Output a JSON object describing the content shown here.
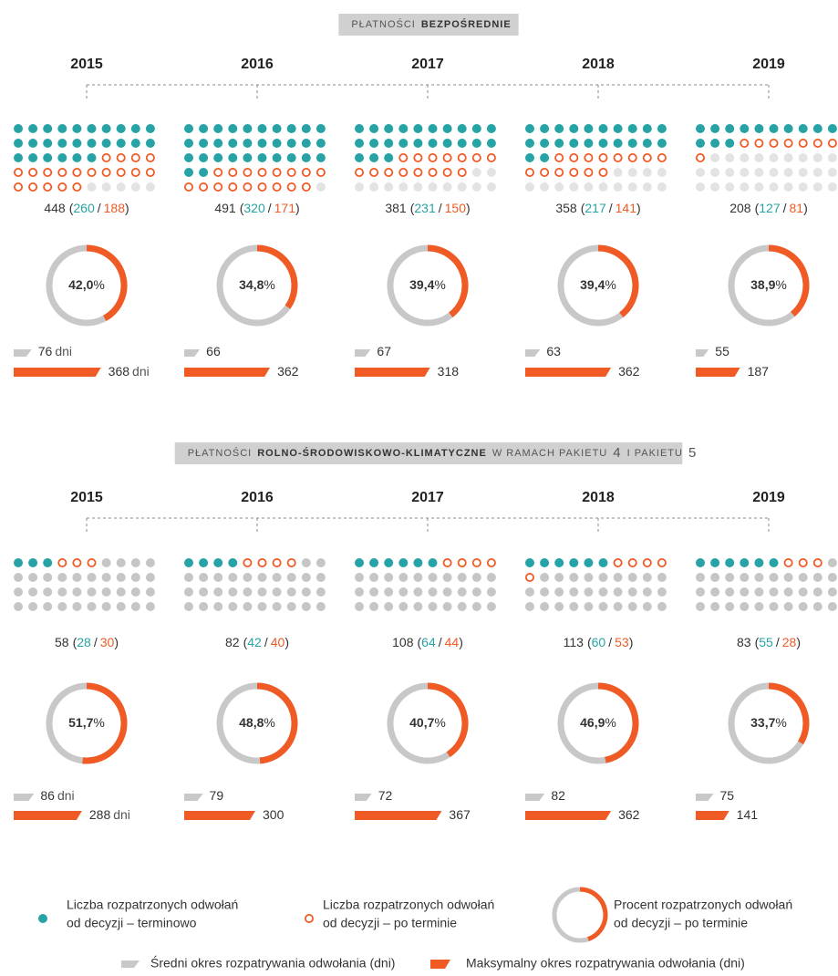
{
  "units": {
    "percent": "%",
    "days": "dni"
  },
  "punctuation": {
    "open": "(",
    "separator": "/",
    "close": ")"
  },
  "colors": {
    "on_time": "#27a3a5",
    "late": "#f05a24",
    "ring": "#c8c8c8",
    "avg_bar": "#c8c8c8",
    "max_bar": "#f05a24"
  },
  "sections": [
    {
      "title": [
        "PŁATNOŚCI",
        "BEZPOŚREDNIE"
      ],
      "empty_color": "#e3e3e3",
      "panels": [
        {
          "year": "2015",
          "total": 448,
          "on_time": 260,
          "late": 188,
          "percent": 42.0,
          "percent_label": "42,0",
          "avg_days": 76,
          "max_days": 368
        },
        {
          "year": "2016",
          "total": 491,
          "on_time": 320,
          "late": 171,
          "percent": 34.8,
          "percent_label": "34,8",
          "avg_days": 66,
          "max_days": 362
        },
        {
          "year": "2017",
          "total": 381,
          "on_time": 231,
          "late": 150,
          "percent": 39.4,
          "percent_label": "39,4",
          "avg_days": 67,
          "max_days": 318
        },
        {
          "year": "2018",
          "total": 358,
          "on_time": 217,
          "late": 141,
          "percent": 39.4,
          "percent_label": "39,4",
          "avg_days": 63,
          "max_days": 362
        },
        {
          "year": "2019",
          "total": 208,
          "on_time": 127,
          "late": 81,
          "percent": 38.9,
          "percent_label": "38,9",
          "avg_days": 55,
          "max_days": 187
        }
      ]
    },
    {
      "title": [
        "PŁATNOŚCI",
        "ROLNO-ŚRODOWISKOWO-KLIMATYCZNE",
        "W RAMACH PAKIETU",
        "4",
        "I PAKIETU",
        "5"
      ],
      "empty_color": "#c6c6c6",
      "panels": [
        {
          "year": "2015",
          "total": 58,
          "on_time": 28,
          "late": 30,
          "percent": 51.7,
          "percent_label": "51,7",
          "avg_days": 86,
          "max_days": 288
        },
        {
          "year": "2016",
          "total": 82,
          "on_time": 42,
          "late": 40,
          "percent": 48.8,
          "percent_label": "48,8",
          "avg_days": 79,
          "max_days": 300
        },
        {
          "year": "2017",
          "total": 108,
          "on_time": 64,
          "late": 44,
          "percent": 40.7,
          "percent_label": "40,7",
          "avg_days": 72,
          "max_days": 367
        },
        {
          "year": "2018",
          "total": 113,
          "on_time": 60,
          "late": 53,
          "percent": 46.9,
          "percent_label": "46,9",
          "avg_days": 82,
          "max_days": 362
        },
        {
          "year": "2019",
          "total": 83,
          "on_time": 55,
          "late": 28,
          "percent": 33.7,
          "percent_label": "33,7",
          "avg_days": 75,
          "max_days": 141
        }
      ]
    }
  ],
  "legend": {
    "items": [
      {
        "lines": [
          "Liczba rozpatrzonych odwołań",
          "od decyzji – terminowo"
        ]
      },
      {
        "lines": [
          "Liczba rozpatrzonych odwołań",
          "od decyzji – po terminie"
        ]
      },
      {
        "lines": [
          "Procent rozpatrzonych odwołań",
          "od decyzji – po terminie"
        ]
      },
      {
        "lines": [
          "Średni okres rozpatrywania odwołania (dni)"
        ]
      },
      {
        "lines": [
          "Maksymalny okres rozpatrywania odwołania (dni)"
        ]
      }
    ]
  }
}
